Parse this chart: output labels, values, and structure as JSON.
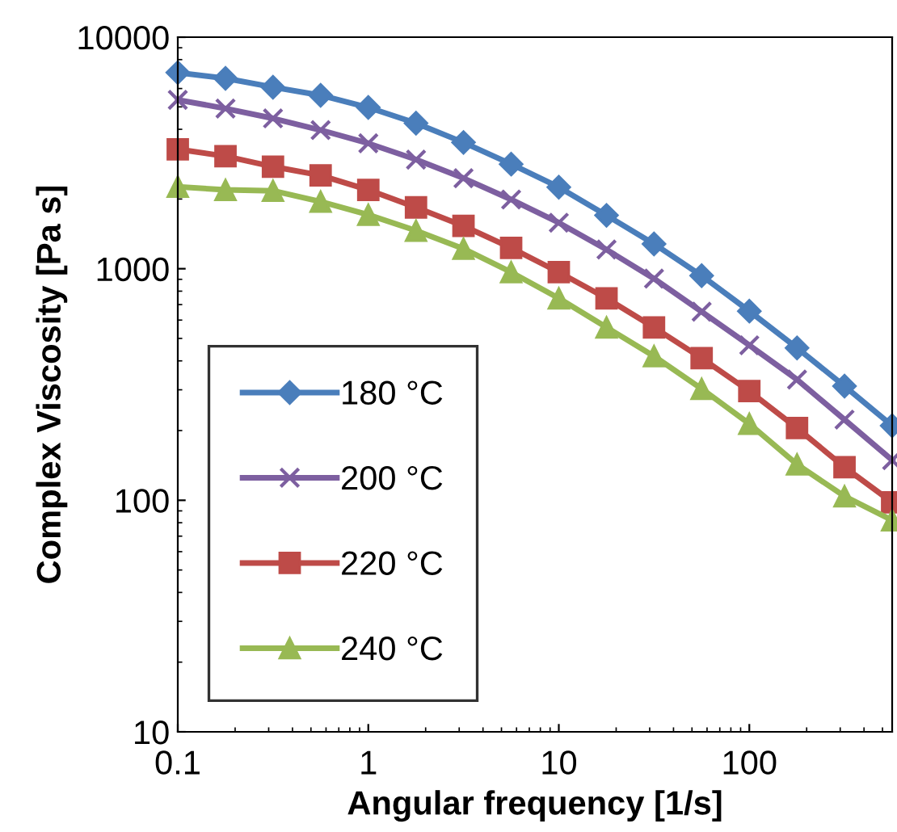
{
  "chart_data": {
    "type": "line",
    "xlabel": "Angular frequency [1/s]",
    "ylabel": "Complex Viscosity [Pa s]",
    "x": [
      0.1,
      0.178,
      0.316,
      0.562,
      1,
      1.78,
      3.16,
      5.62,
      10,
      17.8,
      31.6,
      56.2,
      100,
      178,
      316,
      562
    ],
    "series": [
      {
        "name": "180 °C",
        "color": "#4a7ebb",
        "marker": "diamond",
        "values": [
          7030,
          6640,
          6080,
          5610,
          4970,
          4250,
          3510,
          2830,
          2250,
          1700,
          1280,
          933,
          656,
          455,
          311,
          210
        ]
      },
      {
        "name": "200 °C",
        "color": "#7d5fa0",
        "marker": "cross",
        "values": [
          5360,
          4920,
          4460,
          3970,
          3480,
          2960,
          2460,
          1990,
          1580,
          1210,
          906,
          652,
          467,
          332,
          223,
          149
        ]
      },
      {
        "name": "220 °C",
        "color": "#be4b48",
        "marker": "square",
        "values": [
          3280,
          3060,
          2760,
          2530,
          2190,
          1840,
          1530,
          1230,
          966,
          745,
          558,
          411,
          296,
          205,
          139,
          98
        ]
      },
      {
        "name": "240 °C",
        "color": "#98b954",
        "marker": "triangle",
        "values": [
          2260,
          2190,
          2170,
          1950,
          1710,
          1460,
          1220,
          966,
          745,
          558,
          419,
          303,
          214,
          143,
          104,
          82
        ]
      }
    ],
    "log": "xy",
    "xlim": [
      0.1,
      562
    ],
    "ylim": [
      10,
      10000
    ],
    "xticks": [
      0.1,
      1,
      10,
      100
    ],
    "yticks": [
      10,
      100,
      1000,
      10000
    ],
    "grid": false,
    "legend": "left",
    "line_style": "solid"
  }
}
